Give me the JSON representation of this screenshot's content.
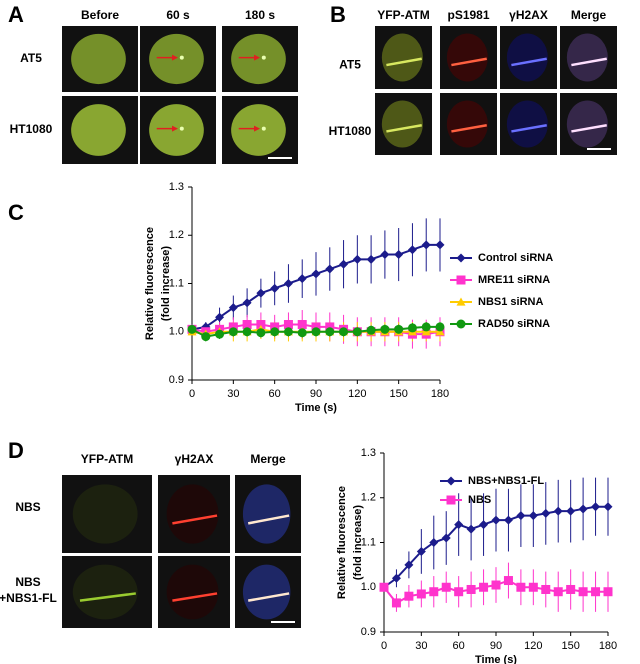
{
  "figure": {
    "A": {
      "label": "A",
      "columns": [
        "Before",
        "60 s",
        "180 s"
      ],
      "rows": [
        "AT5",
        "HT1080"
      ]
    },
    "B": {
      "label": "B",
      "columns": [
        "YFP-ATM",
        "pS1981",
        "γH2AX",
        "Merge"
      ],
      "rows": [
        "AT5",
        "HT1080"
      ]
    },
    "C": {
      "label": "C"
    },
    "D": {
      "label": "D",
      "columns": [
        "YFP-ATM",
        "γH2AX",
        "Merge"
      ],
      "rows": [
        [
          "NBS"
        ],
        [
          "NBS",
          "+NBS1-FL"
        ]
      ]
    }
  },
  "chart_data": [
    {
      "type": "line",
      "xlabel": "Time (s)",
      "ylabel": [
        "Relative fluorescence",
        "(fold increase)"
      ],
      "x": [
        0,
        10,
        20,
        30,
        40,
        50,
        60,
        70,
        80,
        90,
        100,
        110,
        120,
        130,
        140,
        150,
        160,
        170,
        180
      ],
      "xlim": [
        0,
        180
      ],
      "xticks": [
        0,
        30,
        60,
        90,
        120,
        150,
        180
      ],
      "ylim": [
        0.9,
        1.3
      ],
      "yticks": [
        0.9,
        {
          "value": 1,
          "label": "1.0"
        },
        1.1,
        1.2,
        1.3
      ],
      "legend": "right",
      "series": [
        {
          "name": "Control siRNA",
          "color": "#1c1c8c",
          "marker": "diamond",
          "values": [
            1.005,
            1.01,
            1.03,
            1.05,
            1.06,
            1.08,
            1.09,
            1.1,
            1.11,
            1.12,
            1.13,
            1.14,
            1.15,
            1.15,
            1.16,
            1.16,
            1.17,
            1.18,
            1.18
          ],
          "errors": [
            0.01,
            0.01,
            0.02,
            0.025,
            0.03,
            0.03,
            0.035,
            0.04,
            0.04,
            0.045,
            0.045,
            0.05,
            0.05,
            0.05,
            0.05,
            0.055,
            0.055,
            0.055,
            0.055
          ]
        },
        {
          "name": "MRE11 siRNA",
          "color": "#ff33cc",
          "marker": "square",
          "values": [
            1.005,
            1,
            1.005,
            1.01,
            1.015,
            1.015,
            1.01,
            1.015,
            1.015,
            1.01,
            1.01,
            1.005,
            1,
            1,
            1,
            1,
            0.995,
            0.995,
            1
          ],
          "errors": [
            0.005,
            0.01,
            0.015,
            0.02,
            0.02,
            0.025,
            0.025,
            0.025,
            0.03,
            0.03,
            0.03,
            0.03,
            0.03,
            0.03,
            0.03,
            0.03,
            0.03,
            0.03,
            0.03
          ]
        },
        {
          "name": "NBS1 siRNA",
          "color": "#ffcc00",
          "marker": "triangle",
          "values": [
            1,
            0.995,
            1,
            1,
            1,
            1.005,
            1,
            1,
            1,
            1,
            1,
            1,
            1,
            1,
            1,
            1,
            1,
            1,
            1
          ],
          "errors": [
            0.005,
            0.01,
            0.015,
            0.02,
            0.02,
            0.02,
            0.02,
            0.02,
            0.02,
            0.02,
            0.02,
            0.02,
            0.02,
            0.02,
            0.02,
            0.02,
            0.02,
            0.02,
            0.02
          ]
        },
        {
          "name": "RAD50 siRNA",
          "color": "#119911",
          "marker": "circle",
          "values": [
            1.005,
            0.99,
            0.995,
            1,
            1,
            0.998,
            1,
            1,
            0.998,
            1,
            1,
            1,
            1,
            1.003,
            1.005,
            1.005,
            1.008,
            1.01,
            1.01
          ],
          "errors": [
            0.005,
            0.01,
            0.01,
            0.01,
            0.01,
            0.01,
            0.01,
            0.01,
            0.01,
            0.01,
            0.01,
            0.01,
            0.01,
            0.01,
            0.01,
            0.01,
            0.01,
            0.01,
            0.01
          ]
        }
      ]
    },
    {
      "type": "line",
      "xlabel": "Time (s)",
      "ylabel": [
        "Relative fluorescence",
        "(fold increase)"
      ],
      "x": [
        0,
        10,
        20,
        30,
        40,
        50,
        60,
        70,
        80,
        90,
        100,
        110,
        120,
        130,
        140,
        150,
        160,
        170,
        180
      ],
      "xlim": [
        0,
        180
      ],
      "xticks": [
        0,
        30,
        60,
        90,
        120,
        150,
        180
      ],
      "ylim": [
        0.9,
        1.3
      ],
      "yticks": [
        0.9,
        {
          "value": 1,
          "label": "1.0"
        },
        1.1,
        1.2,
        1.3
      ],
      "legend": "top",
      "series": [
        {
          "name": "NBS+NBS1-FL",
          "color": "#1c1c8c",
          "marker": "diamond",
          "values": [
            1,
            1.02,
            1.05,
            1.08,
            1.1,
            1.11,
            1.14,
            1.13,
            1.14,
            1.15,
            1.15,
            1.16,
            1.16,
            1.165,
            1.17,
            1.17,
            1.175,
            1.18,
            1.18
          ],
          "errors": [
            0,
            0.02,
            0.03,
            0.05,
            0.06,
            0.06,
            0.07,
            0.07,
            0.07,
            0.07,
            0.07,
            0.07,
            0.07,
            0.07,
            0.07,
            0.07,
            0.07,
            0.065,
            0.065
          ]
        },
        {
          "name": "NBS",
          "color": "#ff33cc",
          "marker": "square",
          "values": [
            1,
            0.965,
            0.98,
            0.985,
            0.99,
            1,
            0.99,
            0.995,
            1,
            1.005,
            1.015,
            1,
            1,
            0.995,
            0.99,
            0.995,
            0.99,
            0.99,
            0.99
          ],
          "errors": [
            0,
            0.02,
            0.025,
            0.03,
            0.035,
            0.035,
            0.035,
            0.04,
            0.04,
            0.04,
            0.04,
            0.04,
            0.04,
            0.04,
            0.045,
            0.045,
            0.045,
            0.045,
            0.045
          ]
        }
      ]
    }
  ]
}
